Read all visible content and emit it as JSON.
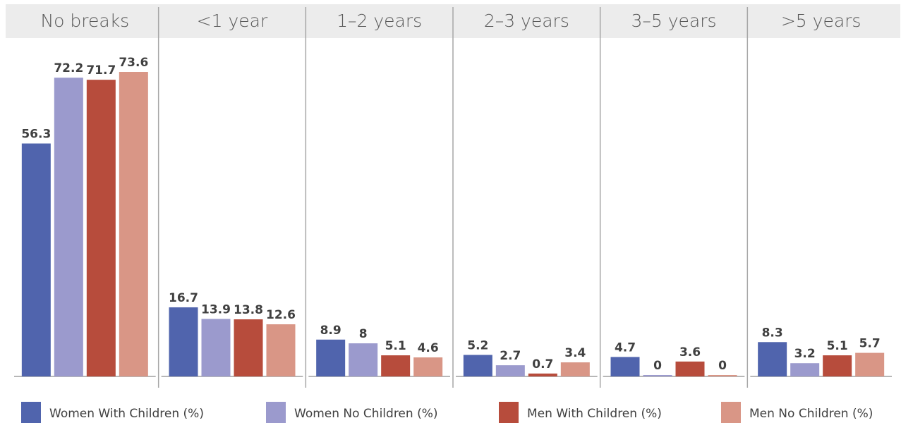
{
  "chart_data": {
    "type": "bar",
    "categories": [
      "No breaks",
      "<1 year",
      "1–2 years",
      "2–3 years",
      "3–5 years",
      ">5 years"
    ],
    "series": [
      {
        "name": "Women With Children (%)",
        "color": "#5064ad",
        "values": [
          56.3,
          16.7,
          8.9,
          5.2,
          4.7,
          8.3
        ]
      },
      {
        "name": "Women No Children (%)",
        "color": "#9b9acd",
        "values": [
          72.2,
          13.9,
          8,
          2.7,
          0,
          3.2
        ]
      },
      {
        "name": "Men With Children (%)",
        "color": "#b74c3c",
        "values": [
          71.7,
          13.8,
          5.1,
          0.7,
          3.6,
          5.1
        ]
      },
      {
        "name": "Men No Children (%)",
        "color": "#d99686",
        "values": [
          73.6,
          12.6,
          4.6,
          3.4,
          0,
          5.7
        ]
      }
    ],
    "ylim": [
      0,
      75
    ],
    "grid": false,
    "legend": "bottom",
    "header_band_color": "#ececec",
    "divider_color": "#a6a6a6"
  }
}
